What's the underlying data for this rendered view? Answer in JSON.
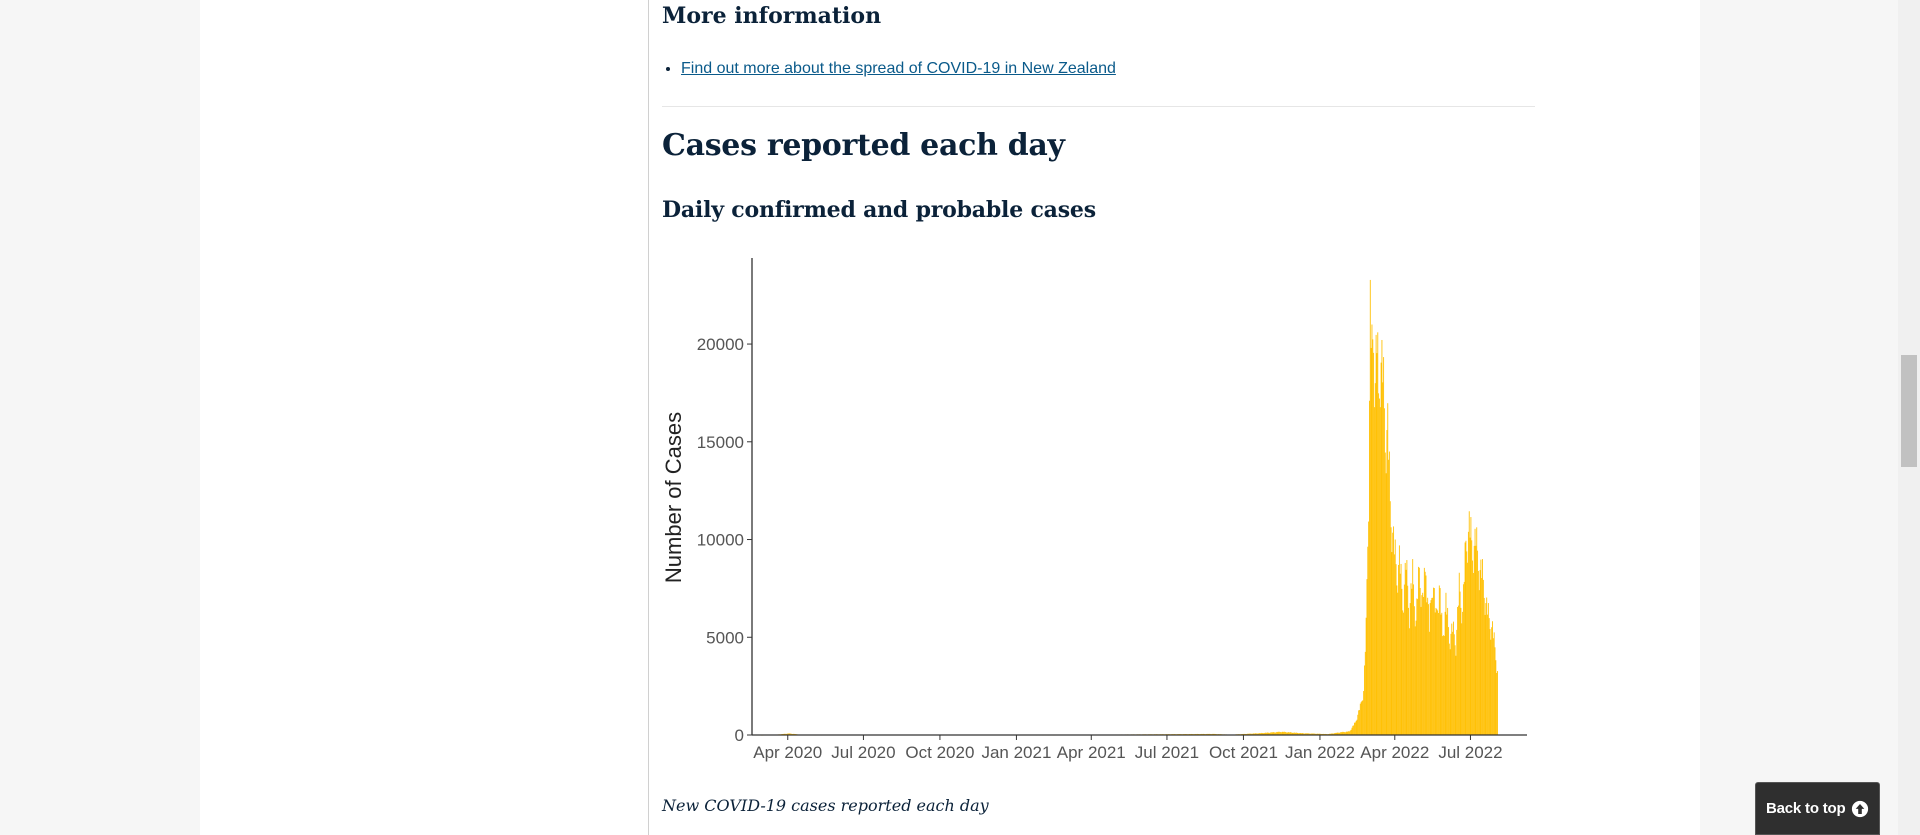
{
  "more_info": {
    "heading": "More information",
    "links": [
      {
        "label": "Find out more about the spread of COVID-19 in New Zealand"
      }
    ]
  },
  "section": {
    "title": "Cases reported each day",
    "subtitle": "Daily confirmed and probable cases",
    "caption": "New COVID-19 cases reported each day"
  },
  "back_to_top": {
    "label": "Back to top",
    "icon": "arrow-up-circle-icon"
  },
  "colors": {
    "bars": "#ffc107",
    "heading": "#0b2239",
    "link": "#0a5a8a",
    "axis": "#333333"
  },
  "chart_data": {
    "type": "bar",
    "title": "",
    "xlabel": "",
    "ylabel": "Number of Cases",
    "ylim": [
      0,
      24300
    ],
    "yticks": [
      0,
      5000,
      10000,
      15000,
      20000
    ],
    "xticks": [
      "Apr 2020",
      "Jul 2020",
      "Oct 2020",
      "Jan 2021",
      "Apr 2021",
      "Jul 2021",
      "Oct 2021",
      "Jan 2022",
      "Apr 2022",
      "Jul 2022"
    ],
    "grid": false,
    "series": [
      {
        "points": [
          {
            "x": "2020-02-28",
            "y": 0
          },
          {
            "x": "2020-03-20",
            "y": 30
          },
          {
            "x": "2020-04-02",
            "y": 85
          },
          {
            "x": "2020-04-15",
            "y": 25
          },
          {
            "x": "2020-05-01",
            "y": 5
          },
          {
            "x": "2020-08-15",
            "y": 10
          },
          {
            "x": "2021-02-15",
            "y": 5
          },
          {
            "x": "2021-08-25",
            "y": 60
          },
          {
            "x": "2021-09-15",
            "y": 20
          },
          {
            "x": "2021-10-20",
            "y": 100
          },
          {
            "x": "2021-11-15",
            "y": 180
          },
          {
            "x": "2021-12-10",
            "y": 100
          },
          {
            "x": "2022-01-10",
            "y": 50
          },
          {
            "x": "2022-01-25",
            "y": 150
          },
          {
            "x": "2022-02-05",
            "y": 200
          },
          {
            "x": "2022-02-12",
            "y": 700
          },
          {
            "x": "2022-02-18",
            "y": 1600
          },
          {
            "x": "2022-02-22",
            "y": 2500
          },
          {
            "x": "2022-02-25",
            "y": 6000
          },
          {
            "x": "2022-02-28",
            "y": 14000
          },
          {
            "x": "2022-03-02",
            "y": 24000
          },
          {
            "x": "2022-03-04",
            "y": 21000
          },
          {
            "x": "2022-03-06",
            "y": 23000
          },
          {
            "x": "2022-03-08",
            "y": 20000
          },
          {
            "x": "2022-03-10",
            "y": 22200
          },
          {
            "x": "2022-03-12",
            "y": 19000
          },
          {
            "x": "2022-03-14",
            "y": 21500
          },
          {
            "x": "2022-03-17",
            "y": 20500
          },
          {
            "x": "2022-03-20",
            "y": 17000
          },
          {
            "x": "2022-03-23",
            "y": 17500
          },
          {
            "x": "2022-03-26",
            "y": 13000
          },
          {
            "x": "2022-03-30",
            "y": 11000
          },
          {
            "x": "2022-04-03",
            "y": 9000
          },
          {
            "x": "2022-04-06",
            "y": 10000
          },
          {
            "x": "2022-04-10",
            "y": 7500
          },
          {
            "x": "2022-04-14",
            "y": 9600
          },
          {
            "x": "2022-04-18",
            "y": 7000
          },
          {
            "x": "2022-04-22",
            "y": 9000
          },
          {
            "x": "2022-04-26",
            "y": 6500
          },
          {
            "x": "2022-04-30",
            "y": 9300
          },
          {
            "x": "2022-05-04",
            "y": 7500
          },
          {
            "x": "2022-05-08",
            "y": 9600
          },
          {
            "x": "2022-05-12",
            "y": 6000
          },
          {
            "x": "2022-05-16",
            "y": 9000
          },
          {
            "x": "2022-05-20",
            "y": 6500
          },
          {
            "x": "2022-05-24",
            "y": 8500
          },
          {
            "x": "2022-05-28",
            "y": 5500
          },
          {
            "x": "2022-06-01",
            "y": 7500
          },
          {
            "x": "2022-06-05",
            "y": 5500
          },
          {
            "x": "2022-06-09",
            "y": 6000
          },
          {
            "x": "2022-06-13",
            "y": 5200
          },
          {
            "x": "2022-06-17",
            "y": 8300
          },
          {
            "x": "2022-06-21",
            "y": 7000
          },
          {
            "x": "2022-06-25",
            "y": 10800
          },
          {
            "x": "2022-06-29",
            "y": 11800
          },
          {
            "x": "2022-07-03",
            "y": 10500
          },
          {
            "x": "2022-07-07",
            "y": 11000
          },
          {
            "x": "2022-07-11",
            "y": 9500
          },
          {
            "x": "2022-07-15",
            "y": 9000
          },
          {
            "x": "2022-07-19",
            "y": 7500
          },
          {
            "x": "2022-07-23",
            "y": 6500
          },
          {
            "x": "2022-07-27",
            "y": 6000
          },
          {
            "x": "2022-07-31",
            "y": 4500
          },
          {
            "x": "2022-08-03",
            "y": 3200
          }
        ]
      }
    ]
  }
}
